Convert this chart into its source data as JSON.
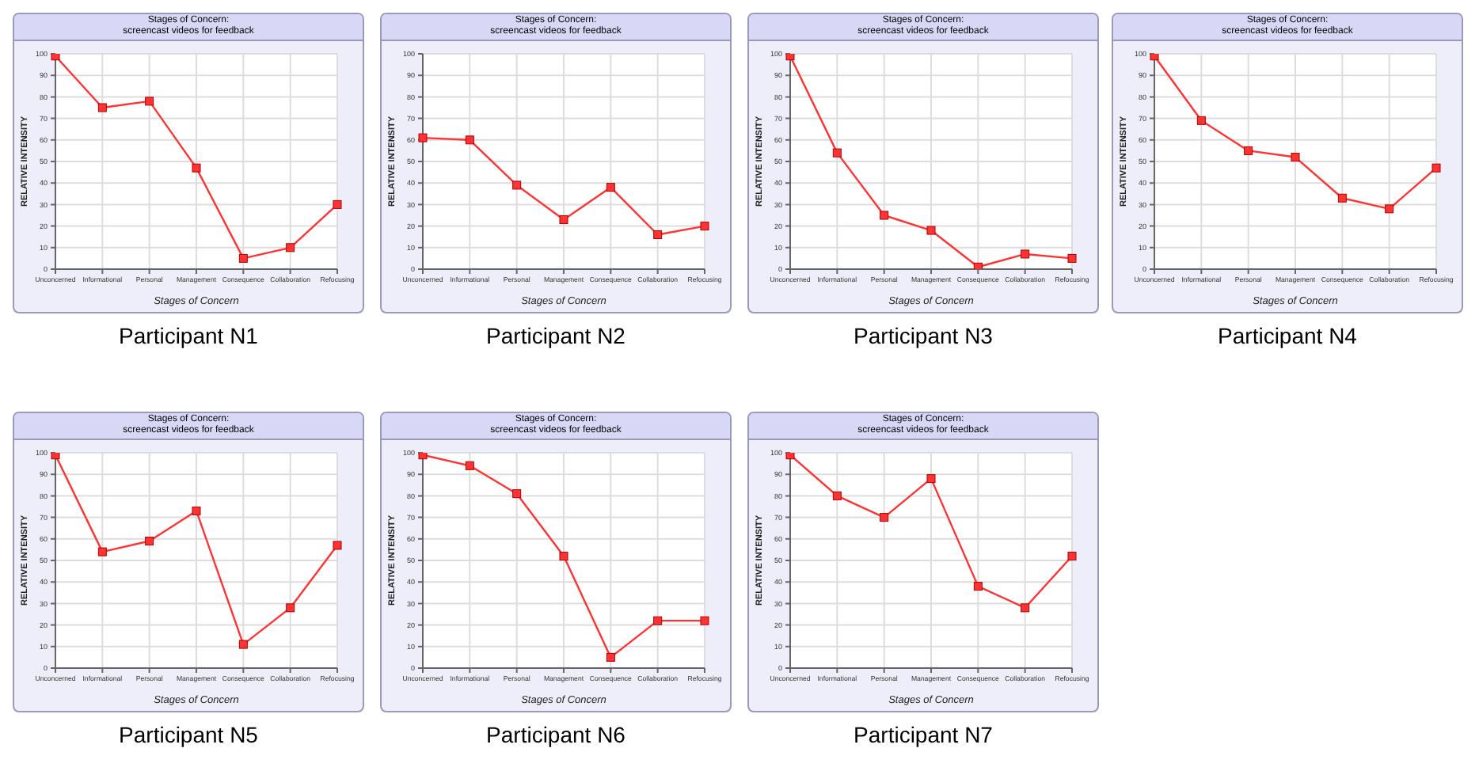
{
  "chart_data": [
    {
      "type": "line",
      "title": "Stages of Concern:",
      "subtitle": "screencast videos for feedback",
      "xlabel": "Stages of Concern",
      "ylabel": "RELATIVE INTENSITY",
      "annotations": [
        "Participant N1"
      ],
      "categories": [
        "Unconcerned",
        "Informational",
        "Personal",
        "Management",
        "Consequence",
        "Collaboration",
        "Refocusing"
      ],
      "series": [
        {
          "color": "#ff3333",
          "values": [
            99,
            75,
            78,
            47,
            5,
            10,
            30
          ]
        }
      ],
      "ylim": [
        0,
        100
      ],
      "yticks": [
        0,
        10,
        20,
        30,
        40,
        50,
        60,
        70,
        80,
        90,
        100
      ],
      "grid": true,
      "marker": "square",
      "legend": false
    },
    {
      "type": "line",
      "title": "Stages of Concern:",
      "subtitle": "screencast videos for feedback",
      "xlabel": "Stages of Concern",
      "ylabel": "RELATIVE INTENSITY",
      "annotations": [
        "Participant N2"
      ],
      "categories": [
        "Unconcerned",
        "Informational",
        "Personal",
        "Management",
        "Consequence",
        "Collaboration",
        "Refocusing"
      ],
      "series": [
        {
          "color": "#ff3333",
          "values": [
            61,
            60,
            39,
            23,
            38,
            16,
            20
          ]
        }
      ],
      "ylim": [
        0,
        100
      ],
      "yticks": [
        0,
        10,
        20,
        30,
        40,
        50,
        60,
        70,
        80,
        90,
        100
      ],
      "grid": true,
      "marker": "square",
      "legend": false
    },
    {
      "type": "line",
      "title": "Stages of Concern:",
      "subtitle": "screencast videos for feedback",
      "xlabel": "Stages of Concern",
      "ylabel": "RELATIVE INTENSITY",
      "annotations": [
        "Participant N3"
      ],
      "categories": [
        "Unconcerned",
        "Informational",
        "Personal",
        "Management",
        "Consequence",
        "Collaboration",
        "Refocusing"
      ],
      "series": [
        {
          "color": "#ff3333",
          "values": [
            99,
            54,
            25,
            18,
            1,
            7,
            5
          ]
        }
      ],
      "ylim": [
        0,
        100
      ],
      "yticks": [
        0,
        10,
        20,
        30,
        40,
        50,
        60,
        70,
        80,
        90,
        100
      ],
      "grid": true,
      "marker": "square",
      "legend": false
    },
    {
      "type": "line",
      "title": "Stages of Concern:",
      "subtitle": "screencast videos for feedback",
      "xlabel": "Stages of Concern",
      "ylabel": "RELATIVE INTENSITY",
      "annotations": [
        "Participant N4"
      ],
      "categories": [
        "Unconcerned",
        "Informational",
        "Personal",
        "Management",
        "Consequence",
        "Collaboration",
        "Refocusing"
      ],
      "series": [
        {
          "color": "#ff3333",
          "values": [
            99,
            69,
            55,
            52,
            33,
            28,
            47
          ]
        }
      ],
      "ylim": [
        0,
        100
      ],
      "yticks": [
        0,
        10,
        20,
        30,
        40,
        50,
        60,
        70,
        80,
        90,
        100
      ],
      "grid": true,
      "marker": "square",
      "legend": false
    },
    {
      "type": "line",
      "title": "Stages of Concern:",
      "subtitle": "screencast videos for feedback",
      "xlabel": "Stages of Concern",
      "ylabel": "RELATIVE INTENSITY",
      "annotations": [
        "Participant N5"
      ],
      "categories": [
        "Unconcerned",
        "Informational",
        "Personal",
        "Management",
        "Consequence",
        "Collaboration",
        "Refocusing"
      ],
      "series": [
        {
          "color": "#ff3333",
          "values": [
            99,
            54,
            59,
            73,
            11,
            28,
            57
          ]
        }
      ],
      "ylim": [
        0,
        100
      ],
      "yticks": [
        0,
        10,
        20,
        30,
        40,
        50,
        60,
        70,
        80,
        90,
        100
      ],
      "grid": true,
      "marker": "square",
      "legend": false
    },
    {
      "type": "line",
      "title": "Stages of Concern:",
      "subtitle": "screencast videos for feedback",
      "xlabel": "Stages of Concern",
      "ylabel": "RELATIVE INTENSITY",
      "annotations": [
        "Participant N6"
      ],
      "categories": [
        "Unconcerned",
        "Informational",
        "Personal",
        "Management",
        "Consequence",
        "Collaboration",
        "Refocusing"
      ],
      "series": [
        {
          "color": "#ff3333",
          "values": [
            99,
            94,
            81,
            52,
            5,
            22,
            22
          ]
        }
      ],
      "ylim": [
        0,
        100
      ],
      "yticks": [
        0,
        10,
        20,
        30,
        40,
        50,
        60,
        70,
        80,
        90,
        100
      ],
      "grid": true,
      "marker": "square",
      "legend": false
    },
    {
      "type": "line",
      "title": "Stages of Concern:",
      "subtitle": "screencast videos for feedback",
      "xlabel": "Stages of Concern",
      "ylabel": "RELATIVE INTENSITY",
      "annotations": [
        "Participant N7"
      ],
      "categories": [
        "Unconcerned",
        "Informational",
        "Personal",
        "Management",
        "Consequence",
        "Collaboration",
        "Refocusing"
      ],
      "series": [
        {
          "color": "#ff3333",
          "values": [
            99,
            80,
            70,
            88,
            38,
            28,
            52
          ]
        }
      ],
      "ylim": [
        0,
        100
      ],
      "yticks": [
        0,
        10,
        20,
        30,
        40,
        50,
        60,
        70,
        80,
        90,
        100
      ],
      "grid": true,
      "marker": "square",
      "legend": false
    }
  ]
}
